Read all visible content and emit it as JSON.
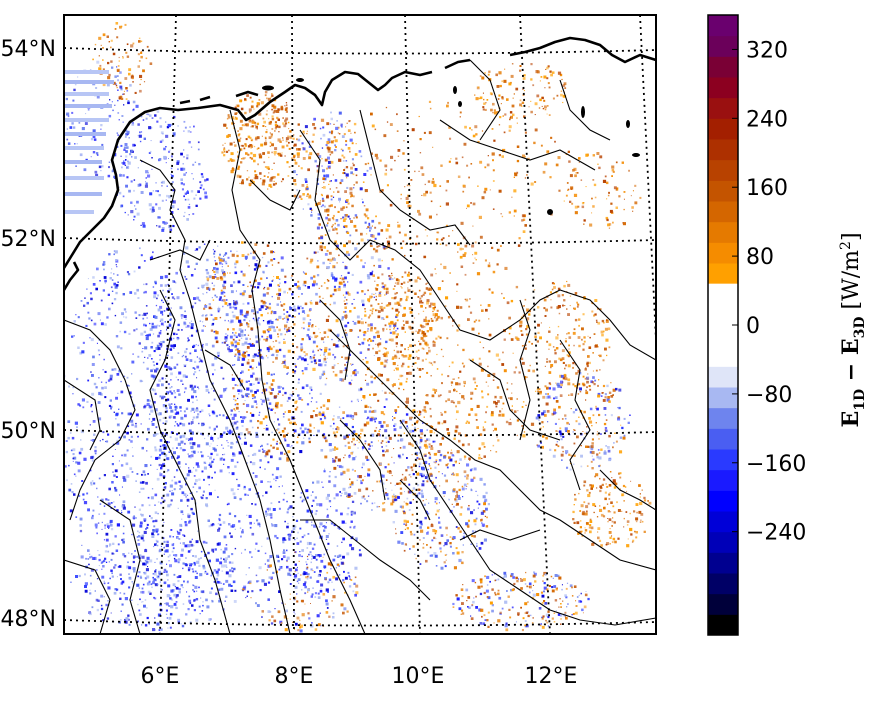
{
  "map": {
    "lat_labels": [
      "54°N",
      "52°N",
      "50°N",
      "48°N"
    ],
    "lon_labels": [
      "6°E",
      "8°E",
      "10°E",
      "12°E"
    ]
  },
  "colorbar": {
    "ticks": [
      "320",
      "240",
      "160",
      "80",
      "0",
      "−80",
      "−160",
      "−240"
    ],
    "tick_values": [
      320,
      240,
      160,
      80,
      0,
      -80,
      -160,
      -240
    ],
    "range": [
      -360,
      360
    ],
    "step": 24,
    "label_main": "E",
    "label_sub1": "1D",
    "label_minus": " − ",
    "label_sub2": "3D",
    "label_unit": " [W/m",
    "label_unit_exp": "2",
    "label_unit_close": "]"
  },
  "colors": {
    "negative": [
      "#000000",
      "#00003a",
      "#000066",
      "#000090",
      "#0000b8",
      "#0000d8",
      "#0000ff",
      "#1a1aff",
      "#2a3aff",
      "#4a5ef2",
      "#6e84ee",
      "#a8b8f2",
      "#dfe5f8",
      "#ffffff"
    ],
    "positive": [
      "#ffffff",
      "#ffe8c0",
      "#ffbf5a",
      "#ffa000",
      "#f58c00",
      "#e57a00",
      "#d46600",
      "#c45400",
      "#b84200",
      "#ad3000",
      "#a31f00",
      "#9a1010",
      "#8c0020",
      "#7a0035",
      "#6b005a",
      "#6a006e"
    ],
    "land_speckle_orange": "#d2691e",
    "land_speckle_blue": "#2a3aff"
  }
}
